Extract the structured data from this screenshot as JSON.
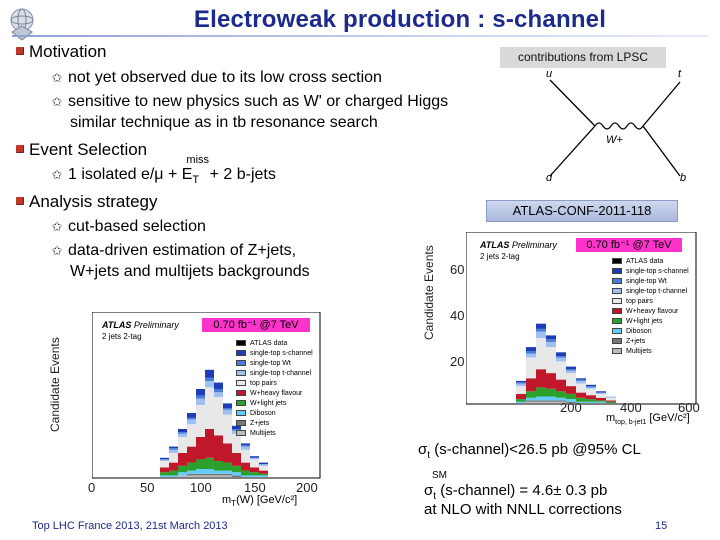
{
  "slide": {
    "title": "Electroweak production : s-channel",
    "footer": "Top LHC France 2013, 21st March 2013",
    "page_number": "15"
  },
  "colors": {
    "title": "#1b2a8c",
    "bullet": "#c0392b",
    "highlight": "#ff33cc"
  },
  "sections": {
    "motivation": {
      "label": "Motivation",
      "items": [
        "not yet observed due to its low cross section",
        "sensitive to new physics such as W' or charged Higgs"
      ],
      "continuation": "similar technique as in tb resonance search"
    },
    "event_selection": {
      "label": "Event Selection",
      "item_prefix": "1 isolated e/",
      "item_mu": "μ",
      "item_plus": " + E",
      "item_sub": "T",
      "item_sup": "miss",
      "item_suffix": " + 2 b-jets"
    },
    "analysis": {
      "label": "Analysis strategy",
      "items": [
        "cut-based selection",
        "data-driven estimation of Z+jets,"
      ],
      "continuation": "W+jets and multijets backgrounds"
    }
  },
  "contrib_box": "contributions from LPSC",
  "conf_box": "ATLAS-CONF-2011-118",
  "diagram": {
    "labels": {
      "tl": "u",
      "tr": "t",
      "bl": "d",
      "br": "b",
      "boson": "W+"
    }
  },
  "plots": {
    "left": {
      "lumi_label": "0.70 fb⁻¹ @7 TeV",
      "ylabel": "Candidate Events",
      "xlabel_main": "m",
      "xlabel_sub": "T",
      "xlabel_rest": "(W) [GeV/c²]",
      "atlas": "ATLAS",
      "preliminary": "Preliminary",
      "tag": "2 jets 2-tag",
      "x_ticks": [
        "0",
        "50",
        "100",
        "150",
        "200"
      ]
    },
    "right": {
      "lumi_label": "0.70 fb⁻¹ @7 TeV",
      "ylabel": "Candidate Events",
      "xlabel_main": "m",
      "xlabel_sub": "top, b-jet1",
      "xlabel_rest": " [GeV/c²]",
      "atlas": "ATLAS",
      "preliminary": "Preliminary",
      "tag": "2 jets 2-tag",
      "x_ticks": [
        "200",
        "400",
        "600"
      ],
      "y_ticks": [
        "60",
        "40",
        "20"
      ]
    },
    "legend": [
      {
        "label": "ATLAS data",
        "color": "#000000"
      },
      {
        "label": "single-top s-channel",
        "color": "#1e3cb4"
      },
      {
        "label": "single-top Wt",
        "color": "#4a7dd8"
      },
      {
        "label": "single-top t-channel",
        "color": "#9fc0f0"
      },
      {
        "label": "top pairs",
        "color": "#e8e8e8"
      },
      {
        "label": "W+heavy flavour",
        "color": "#c0182a"
      },
      {
        "label": "W+light jets",
        "color": "#2ca02c"
      },
      {
        "label": "Diboson",
        "color": "#66ccff"
      },
      {
        "label": "Z+jets",
        "color": "#777777"
      },
      {
        "label": "Multijets",
        "color": "#bbbbbb"
      }
    ]
  },
  "results": {
    "limit_sigma": "σ",
    "limit_sub": "t",
    "limit_text": " (s-channel)<26.5 pb @95% CL",
    "sm_sigma": "σ",
    "sm_sub": "t",
    "sm_sup": "SM",
    "sm_text": " (s-channel) = 4.6± 0.3 pb",
    "sm_line2": "at NLO with NNLL corrections"
  }
}
